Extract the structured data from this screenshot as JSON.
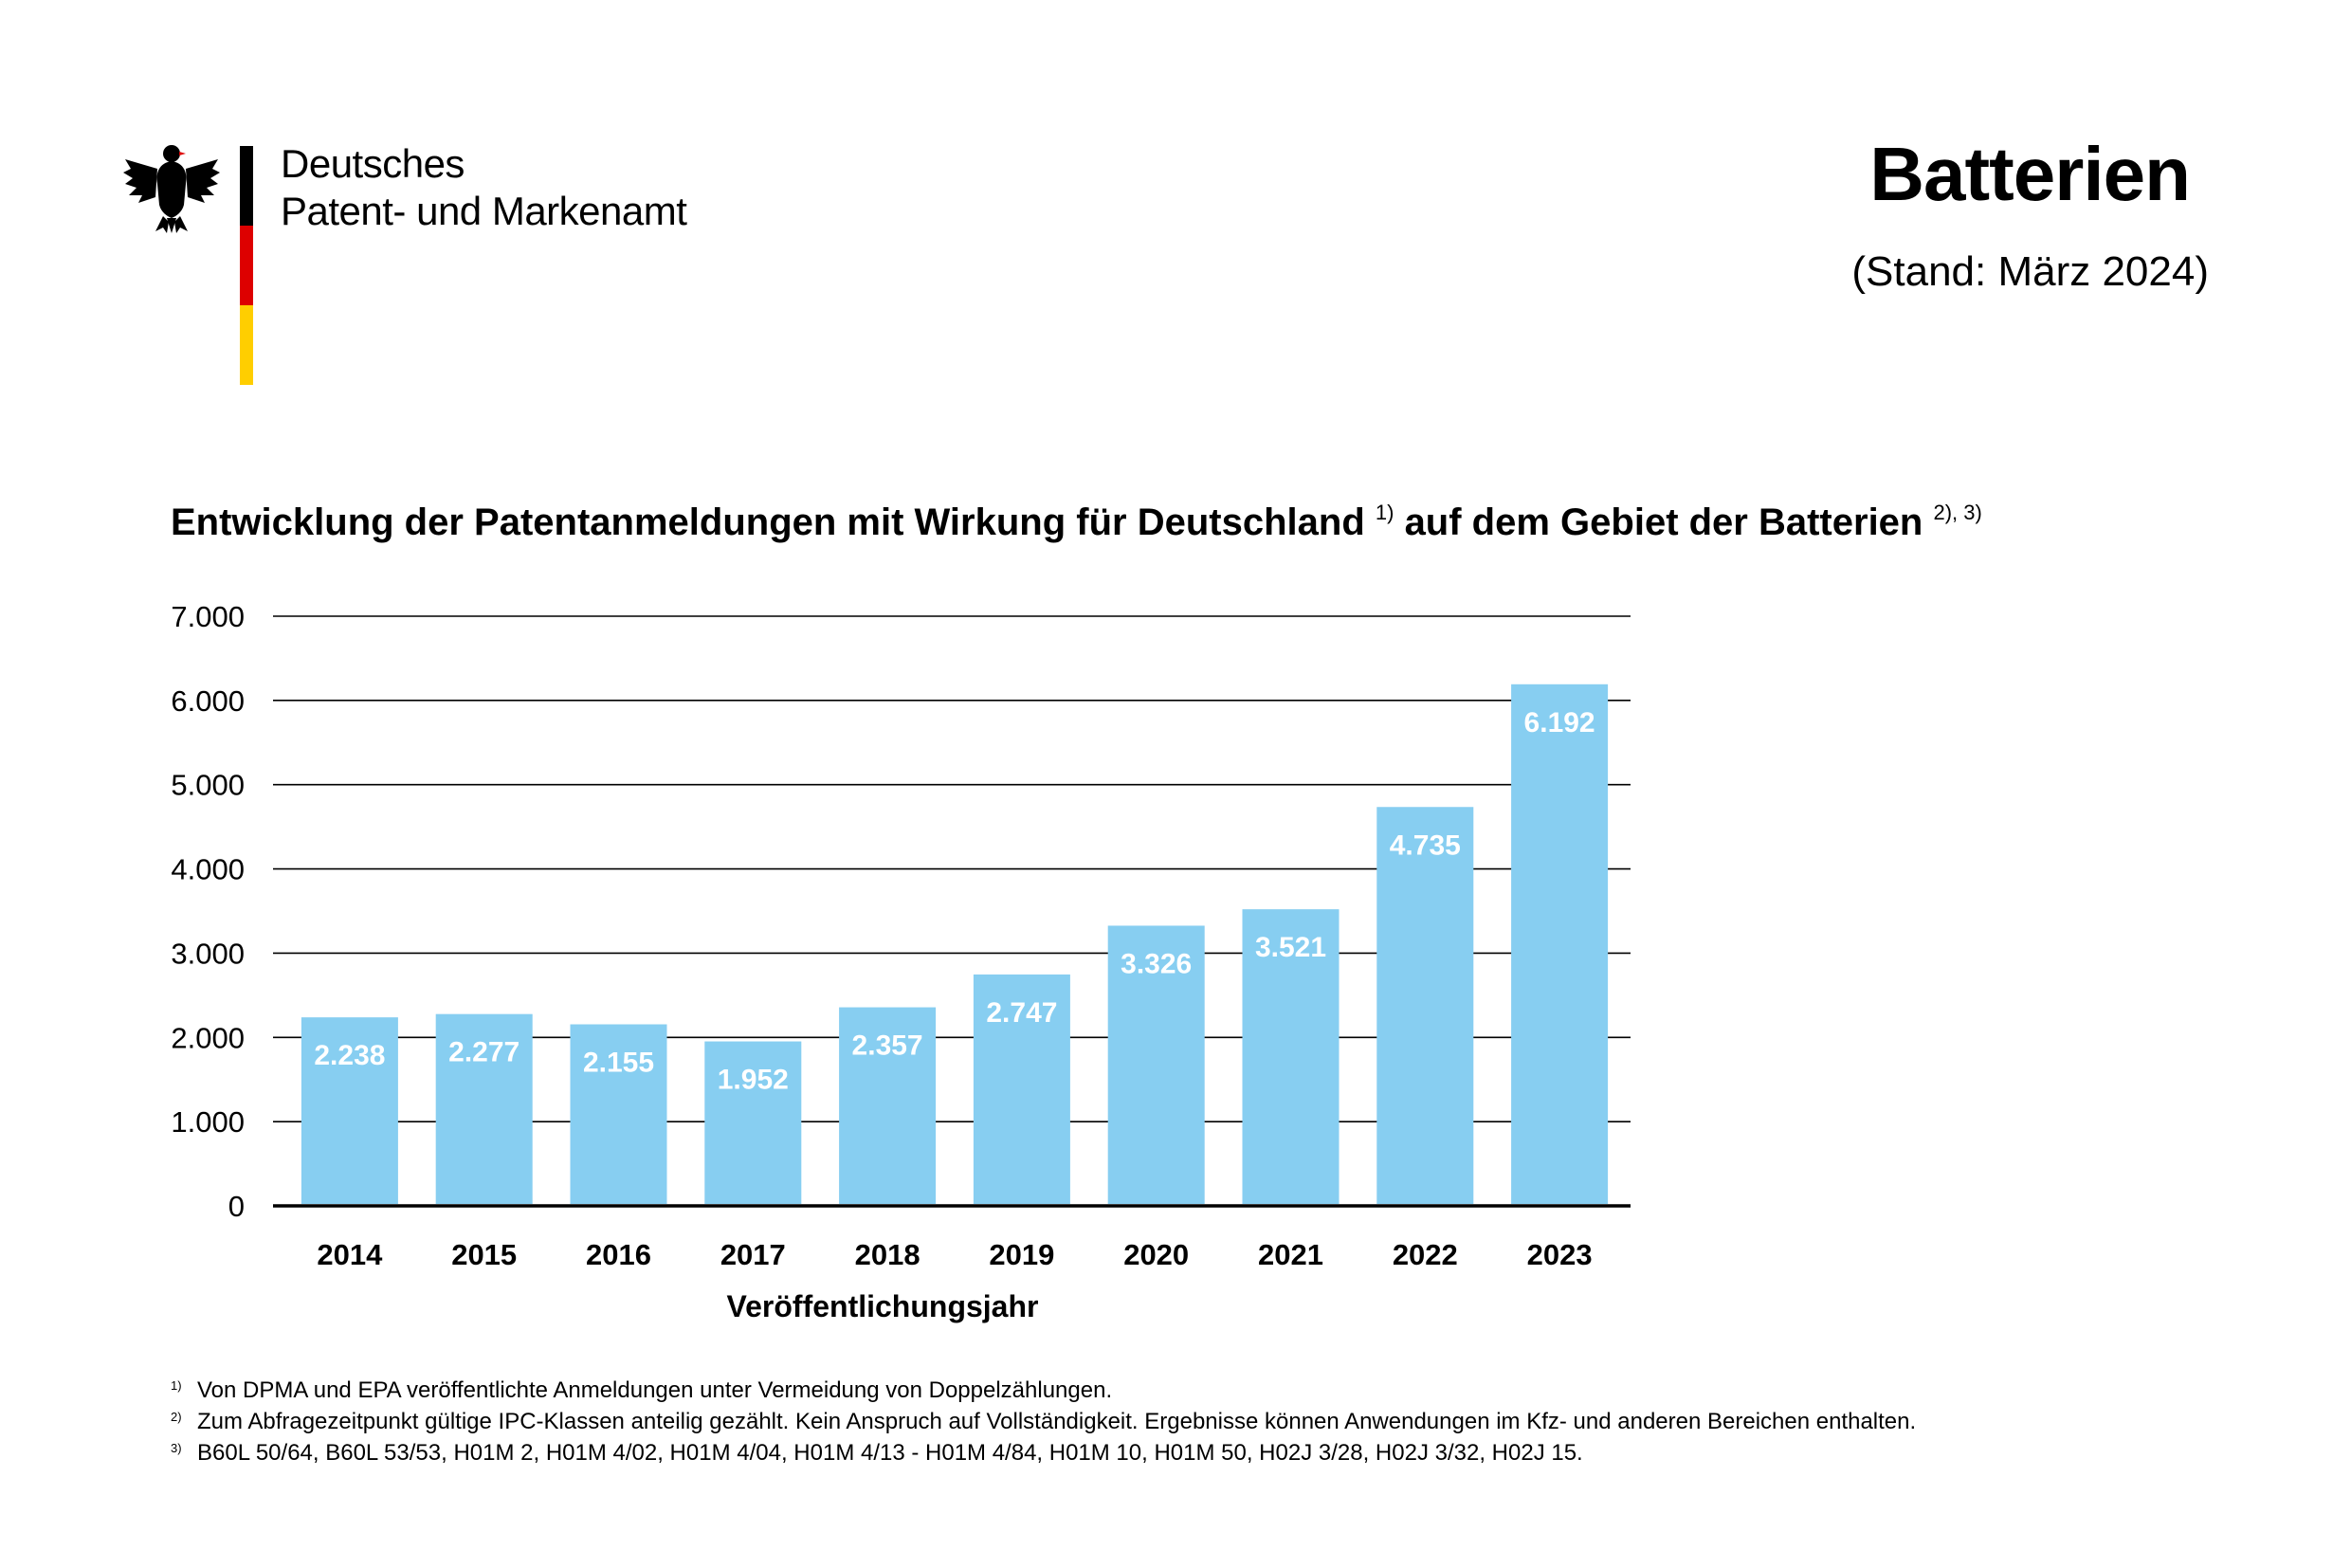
{
  "header": {
    "org_line1": "Deutsches",
    "org_line2": "Patent- und Markenamt",
    "title": "Batterien",
    "date": "(Stand: März 2024)"
  },
  "colors": {
    "bar": "#87cef1",
    "bar_label": "#ffffff",
    "grid": "#000000",
    "flag_black": "#000000",
    "flag_red": "#dd0000",
    "flag_gold": "#ffce00"
  },
  "chart_data": {
    "type": "bar",
    "title": "Entwicklung der Patentanmeldungen mit Wirkung für Deutschland",
    "title_sup1": "1)",
    "title_part2": "auf dem Gebiet der Batterien",
    "title_sup2": "2), 3)",
    "xlabel": "Veröffentlichungsjahr",
    "ylabel": "",
    "ylim": [
      0,
      7000
    ],
    "yticks": [
      0,
      1000,
      2000,
      3000,
      4000,
      5000,
      6000,
      7000
    ],
    "ytick_labels": [
      "0",
      "1.000",
      "2.000",
      "3.000",
      "4.000",
      "5.000",
      "6.000",
      "7.000"
    ],
    "grid": true,
    "categories": [
      "2014",
      "2015",
      "2016",
      "2017",
      "2018",
      "2019",
      "2020",
      "2021",
      "2022",
      "2023"
    ],
    "values": [
      2238,
      2277,
      2155,
      1952,
      2357,
      2747,
      3326,
      3521,
      4735,
      6192
    ],
    "value_labels": [
      "2.238",
      "2.277",
      "2.155",
      "1.952",
      "2.357",
      "2.747",
      "3.326",
      "3.521",
      "4.735",
      "6.192"
    ]
  },
  "footnotes": [
    {
      "mark": "1)",
      "text": "Von DPMA und EPA veröffentlichte Anmeldungen unter Vermeidung von Doppelzählungen."
    },
    {
      "mark": "2)",
      "text": "Zum Abfragezeitpunkt gültige IPC-Klassen anteilig gezählt. Kein Anspruch auf Vollständigkeit. Ergebnisse können Anwendungen im Kfz- und anderen Bereichen enthalten."
    },
    {
      "mark": "3)",
      "text": "B60L 50/64, B60L 53/53, H01M 2, H01M 4/02, H01M 4/04, H01M 4/13 - H01M 4/84, H01M 10, H01M 50, H02J 3/28, H02J 3/32, H02J 15."
    }
  ]
}
